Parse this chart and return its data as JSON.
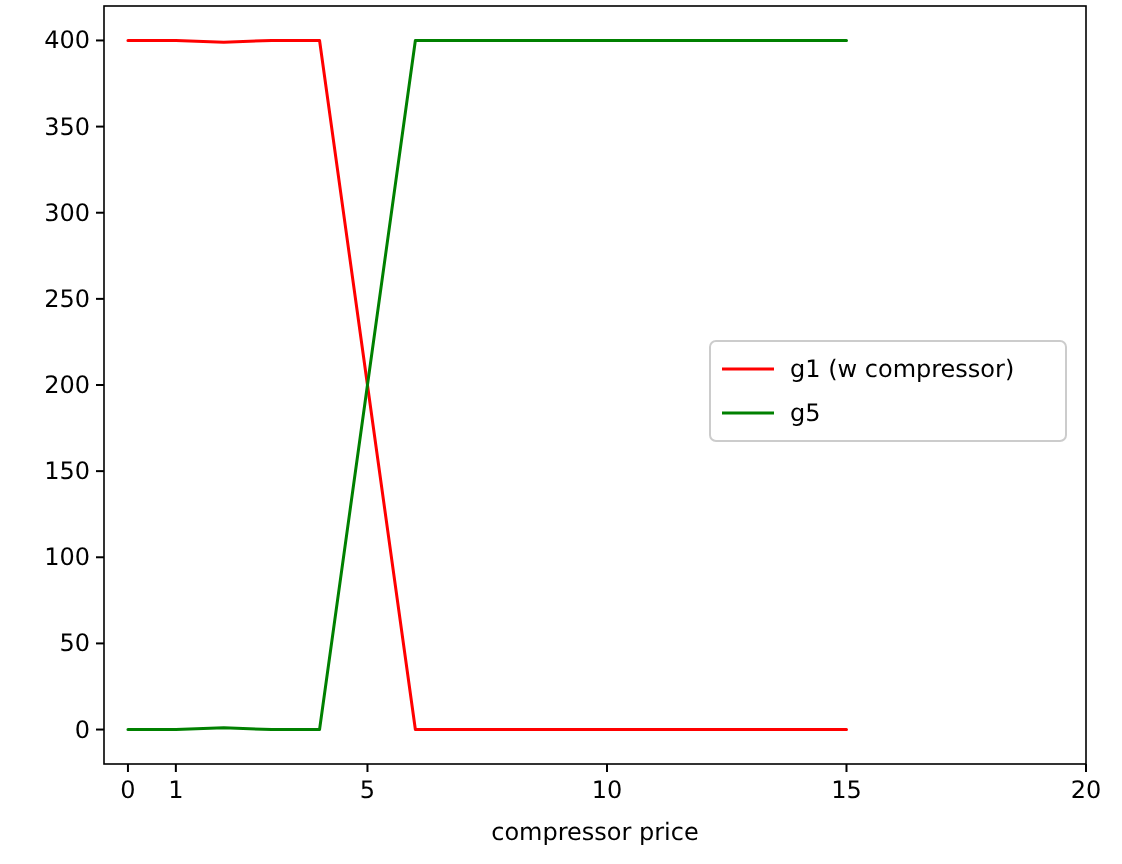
{
  "chart_data": {
    "type": "line",
    "xlabel": "compressor price",
    "x": [
      0,
      1,
      2,
      3,
      4,
      5,
      6,
      7,
      8,
      9,
      10,
      11,
      12,
      13,
      14,
      15
    ],
    "series": [
      {
        "name": "g1 (w compressor)",
        "color": "#ff0000",
        "values": [
          400,
          400,
          399,
          400,
          400,
          200,
          0,
          0,
          0,
          0,
          0,
          0,
          0,
          0,
          0,
          0
        ]
      },
      {
        "name": "g5",
        "color": "#008000",
        "values": [
          0,
          0,
          1,
          0,
          0,
          200,
          400,
          400,
          400,
          400,
          400,
          400,
          400,
          400,
          400,
          400
        ]
      }
    ],
    "xlim": [
      -0.5,
      20
    ],
    "xticks": [
      0,
      1,
      5,
      10,
      15,
      20
    ],
    "ylim": [
      -20,
      420
    ],
    "yticks": [
      0,
      50,
      100,
      150,
      200,
      250,
      300,
      350,
      400
    ],
    "legend": "right",
    "grid": false,
    "marker": "none",
    "line_style": "solid"
  }
}
